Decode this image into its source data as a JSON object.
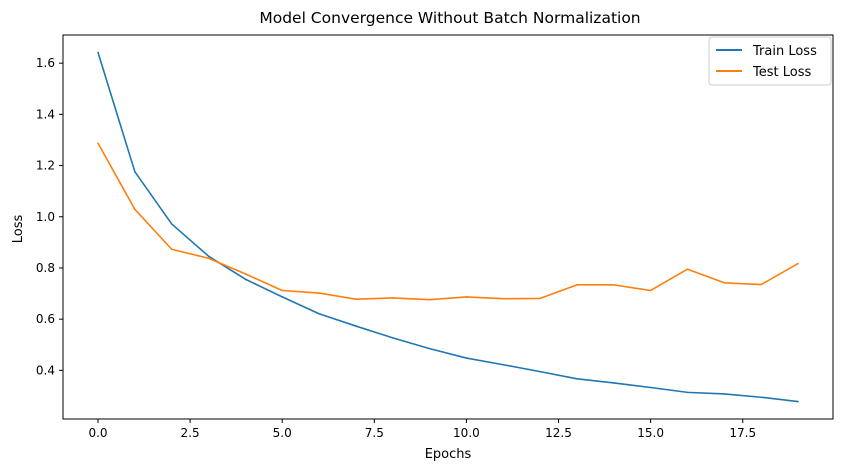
{
  "chart_data": {
    "type": "line",
    "title": "Model Convergence Without Batch Normalization",
    "xlabel": "Epochs",
    "ylabel": "Loss",
    "xlim": [
      -0.95,
      19.95
    ],
    "ylim": [
      0.21,
      1.71
    ],
    "xticks": [
      0.0,
      2.5,
      5.0,
      7.5,
      10.0,
      12.5,
      15.0,
      17.5
    ],
    "xtick_labels": [
      "0.0",
      "2.5",
      "5.0",
      "7.5",
      "10.0",
      "12.5",
      "15.0",
      "17.5"
    ],
    "yticks": [
      0.4,
      0.6,
      0.8,
      1.0,
      1.2,
      1.4,
      1.6
    ],
    "ytick_labels": [
      "0.4",
      "0.6",
      "0.8",
      "1.0",
      "1.2",
      "1.4",
      "1.6"
    ],
    "grid": false,
    "legend_position": "top-right",
    "x": [
      0,
      1,
      2,
      3,
      4,
      5,
      6,
      7,
      8,
      9,
      10,
      11,
      12,
      13,
      14,
      15,
      16,
      17,
      18,
      19
    ],
    "series": [
      {
        "name": "Train Loss",
        "color": "#1f77b4",
        "values": [
          1.642,
          1.176,
          0.972,
          0.846,
          0.756,
          0.687,
          0.621,
          0.573,
          0.527,
          0.485,
          0.448,
          0.422,
          0.395,
          0.367,
          0.351,
          0.333,
          0.314,
          0.308,
          0.295,
          0.278
        ]
      },
      {
        "name": "Test Loss",
        "color": "#ff7f0e",
        "values": [
          1.287,
          1.029,
          0.873,
          0.838,
          0.777,
          0.712,
          0.702,
          0.678,
          0.683,
          0.676,
          0.687,
          0.68,
          0.681,
          0.734,
          0.734,
          0.712,
          0.795,
          0.742,
          0.735,
          0.817
        ]
      }
    ]
  }
}
